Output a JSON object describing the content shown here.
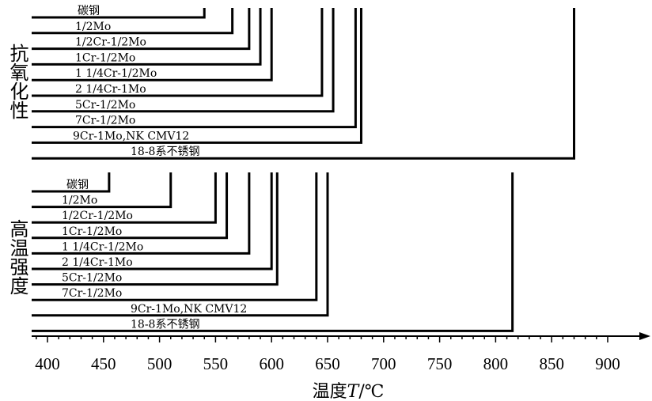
{
  "chart_data": {
    "type": "bar",
    "orientation": "horizontal",
    "x_axis": {
      "label_prefix": "温度",
      "label_var": "T",
      "label_unit": "/℃",
      "min": 390,
      "max": 910,
      "ticks": [
        400,
        450,
        500,
        550,
        600,
        650,
        700,
        750,
        800,
        850,
        900
      ]
    },
    "groups": [
      {
        "label": "抗氧化性",
        "categories": [
          "碳钢",
          "1/2Mo",
          "1/2Cr-1/2Mo",
          "1Cr-1/2Mo",
          "1 1/4Cr-1/2Mo",
          "2 1/4Cr-1Mo",
          "5Cr-1/2Mo",
          "7Cr-1/2Mo",
          "9Cr-1Mo,NK CMV12",
          "18-8系不锈钢"
        ],
        "values": [
          540,
          565,
          580,
          590,
          600,
          645,
          655,
          675,
          680,
          870
        ]
      },
      {
        "label": "高温强度",
        "categories": [
          "碳钢",
          "1/2Mo",
          "1/2Cr-1/2Mo",
          "1Cr-1/2Mo",
          "1 1/4Cr-1/2Mo",
          "2 1/4Cr-1Mo",
          "5Cr-1/2Mo",
          "7Cr-1/2Mo",
          "9Cr-1Mo,NK CMV12",
          "18-8系不锈钢"
        ],
        "values": [
          455,
          510,
          550,
          560,
          580,
          600,
          605,
          640,
          650,
          815
        ]
      }
    ]
  }
}
